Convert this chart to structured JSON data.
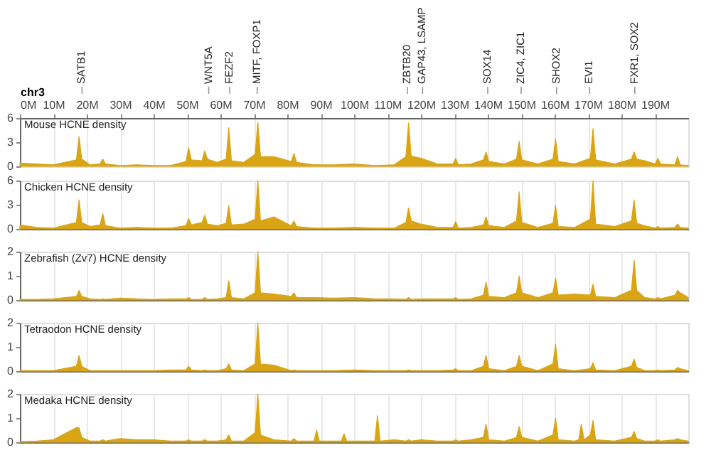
{
  "chart_data": [
    {
      "type": "area",
      "title": "Mouse HCNE density",
      "xlabel": "chr3",
      "color": "#d9a514",
      "grid": "x",
      "xlim": [
        0,
        200
      ],
      "xticks": [
        {
          "value": 0,
          "label": "0M"
        },
        {
          "value": 10,
          "label": "10M"
        },
        {
          "value": 20,
          "label": "20M"
        },
        {
          "value": 30,
          "label": "30M"
        },
        {
          "value": 40,
          "label": "40M"
        },
        {
          "value": 50,
          "label": "50M"
        },
        {
          "value": 60,
          "label": "60M"
        },
        {
          "value": 70,
          "label": "70M"
        },
        {
          "value": 80,
          "label": "80M"
        },
        {
          "value": 90,
          "label": "90M"
        },
        {
          "value": 100,
          "label": "100M"
        },
        {
          "value": 110,
          "label": "110M"
        },
        {
          "value": 120,
          "label": "120M"
        },
        {
          "value": 130,
          "label": "130M"
        },
        {
          "value": 140,
          "label": "140M"
        },
        {
          "value": 150,
          "label": "150M"
        },
        {
          "value": 160,
          "label": "160M"
        },
        {
          "value": 170,
          "label": "170M"
        },
        {
          "value": 180,
          "label": "180M"
        },
        {
          "value": 190,
          "label": "190M"
        }
      ],
      "ylim": [
        0,
        6
      ],
      "yticks": [
        0,
        3,
        6
      ],
      "ref_lines": [
        {
          "axis": "x",
          "value": 18.6,
          "label": "SATB1",
          "color": "#999999"
        },
        {
          "axis": "x",
          "value": 56.5,
          "label": "WNT5A",
          "color": "#999999"
        },
        {
          "axis": "x",
          "value": 62.8,
          "label": "FEZF2",
          "color": "#999999"
        },
        {
          "axis": "x",
          "value": 71,
          "label": "MITF, FOXP1",
          "color": "#999999"
        },
        {
          "axis": "x",
          "value": 116,
          "label": "ZBTB20",
          "color": "#999999"
        },
        {
          "axis": "x",
          "value": 120.5,
          "label": "GAP43, LSAMP",
          "color": "#999999"
        },
        {
          "axis": "x",
          "value": 140,
          "label": "SOX14",
          "color": "#999999"
        },
        {
          "axis": "x",
          "value": 150,
          "label": "ZIC4, ZIC1",
          "color": "#999999"
        },
        {
          "axis": "x",
          "value": 160.6,
          "label": "SHOX2",
          "color": "#999999"
        },
        {
          "axis": "x",
          "value": 170.5,
          "label": "EVI1",
          "color": "#999999"
        },
        {
          "axis": "x",
          "value": 184,
          "label": "FXR1, SOX2",
          "color": "#999999"
        }
      ],
      "x": [
        0,
        5,
        10,
        16.9,
        17.7,
        18.5,
        21,
        24,
        24.8,
        25.6,
        30,
        35,
        40,
        45,
        49.7,
        50.5,
        51.3,
        54.5,
        55.3,
        56.1,
        59,
        61.7,
        62.5,
        63.3,
        67,
        70.4,
        71.2,
        72,
        76,
        81.2,
        82,
        82.8,
        88,
        94,
        100,
        106,
        112,
        115.5,
        116.3,
        117.1,
        120,
        125,
        129.6,
        130.4,
        131.2,
        135,
        138.7,
        139.5,
        140.3,
        145,
        148.6,
        149.4,
        150.2,
        155,
        159.5,
        160.3,
        161.1,
        166,
        170.7,
        171.5,
        172.3,
        178,
        183,
        183.8,
        184.6,
        187,
        190.1,
        190.9,
        191.7,
        196,
        196.8,
        197.6,
        200
      ],
      "values": [
        0.4,
        0.3,
        0.2,
        0.8,
        3.7,
        0.9,
        0.2,
        0.3,
        0.9,
        0.3,
        0.1,
        0.2,
        0.1,
        0.1,
        0.6,
        2.3,
        0.8,
        0.7,
        1.9,
        0.9,
        0.5,
        0.9,
        4.8,
        0.7,
        0.5,
        1.5,
        5.5,
        1.2,
        1.2,
        0.6,
        1.6,
        0.5,
        0.2,
        0.2,
        0.3,
        0.1,
        0.2,
        1.2,
        5.4,
        1.3,
        1.0,
        0.3,
        0.3,
        1.0,
        0.2,
        0.3,
        0.8,
        1.8,
        0.6,
        0.3,
        0.9,
        3.1,
        0.8,
        0.3,
        0.9,
        3.4,
        0.6,
        0.3,
        1.0,
        4.7,
        0.8,
        0.3,
        0.9,
        1.8,
        0.9,
        0.7,
        0.3,
        1.0,
        0.3,
        0.2,
        1.2,
        0.2,
        0.1
      ]
    },
    {
      "type": "area",
      "title": "Chicken HCNE density",
      "color": "#d9a514",
      "grid": "x",
      "tick_labels": "y",
      "xlim": [
        0,
        200
      ],
      "xticks": [
        {
          "value": 0,
          "label": null
        },
        {
          "value": 10,
          "label": null
        },
        {
          "value": 20,
          "label": null
        },
        {
          "value": 30,
          "label": null
        },
        {
          "value": 40,
          "label": null
        },
        {
          "value": 50,
          "label": null
        },
        {
          "value": 60,
          "label": null
        },
        {
          "value": 70,
          "label": null
        },
        {
          "value": 80,
          "label": null
        },
        {
          "value": 90,
          "label": null
        },
        {
          "value": 100,
          "label": null
        },
        {
          "value": 110,
          "label": null
        },
        {
          "value": 120,
          "label": null
        },
        {
          "value": 130,
          "label": null
        },
        {
          "value": 140,
          "label": null
        },
        {
          "value": 150,
          "label": null
        },
        {
          "value": 160,
          "label": null
        },
        {
          "value": 170,
          "label": null
        },
        {
          "value": 180,
          "label": null
        },
        {
          "value": 190,
          "label": null
        }
      ],
      "ylim": [
        0,
        6
      ],
      "yticks": [
        0,
        3,
        6
      ],
      "x": [
        0,
        5,
        10,
        16.9,
        17.7,
        18.5,
        21,
        24,
        24.8,
        25.6,
        30,
        35,
        40,
        45,
        49.7,
        50.5,
        51.3,
        54.5,
        55.3,
        56.1,
        59,
        61.7,
        62.5,
        63.3,
        67,
        70.4,
        71.2,
        72,
        76,
        81.2,
        82,
        82.8,
        88,
        94,
        100,
        106,
        112,
        115.5,
        116.3,
        117.1,
        120,
        125,
        129.6,
        130.4,
        131.2,
        135,
        138.7,
        139.5,
        140.3,
        145,
        148.6,
        149.4,
        150.2,
        155,
        159.5,
        160.3,
        161.1,
        166,
        170.7,
        171.5,
        172.3,
        178,
        183,
        183.8,
        184.6,
        187,
        190.1,
        190.9,
        191.7,
        196,
        196.8,
        197.6,
        200
      ],
      "values": [
        0.5,
        0.2,
        0.1,
        0.8,
        3.6,
        0.8,
        0.3,
        0.5,
        1.9,
        0.4,
        0.1,
        0.2,
        0.1,
        0.1,
        0.4,
        1.3,
        0.5,
        0.8,
        1.7,
        0.6,
        0.4,
        0.7,
        2.9,
        0.5,
        0.6,
        1.2,
        6.0,
        1.0,
        1.5,
        0.4,
        1.0,
        0.3,
        0.1,
        0.1,
        0.2,
        0.1,
        0.1,
        0.8,
        2.6,
        1.0,
        0.6,
        0.2,
        0.2,
        0.9,
        0.1,
        0.2,
        0.5,
        1.5,
        0.4,
        0.2,
        1.0,
        4.6,
        0.8,
        0.2,
        0.7,
        2.9,
        0.3,
        0.2,
        1.2,
        6.0,
        0.6,
        0.3,
        1.0,
        3.6,
        0.7,
        0.4,
        0.1,
        0.3,
        0.1,
        0.2,
        0.6,
        0.2,
        0.1
      ]
    },
    {
      "type": "area",
      "title": "Zebrafish (Zv7) HCNE density",
      "color": "#d9a514",
      "grid": "x",
      "tick_labels": "y",
      "xlim": [
        0,
        200
      ],
      "xticks": [
        {
          "value": 0,
          "label": null
        },
        {
          "value": 10,
          "label": null
        },
        {
          "value": 20,
          "label": null
        },
        {
          "value": 30,
          "label": null
        },
        {
          "value": 40,
          "label": null
        },
        {
          "value": 50,
          "label": null
        },
        {
          "value": 60,
          "label": null
        },
        {
          "value": 70,
          "label": null
        },
        {
          "value": 80,
          "label": null
        },
        {
          "value": 90,
          "label": null
        },
        {
          "value": 100,
          "label": null
        },
        {
          "value": 110,
          "label": null
        },
        {
          "value": 120,
          "label": null
        },
        {
          "value": 130,
          "label": null
        },
        {
          "value": 140,
          "label": null
        },
        {
          "value": 150,
          "label": null
        },
        {
          "value": 160,
          "label": null
        },
        {
          "value": 170,
          "label": null
        },
        {
          "value": 180,
          "label": null
        },
        {
          "value": 190,
          "label": null
        }
      ],
      "ylim": [
        0,
        2
      ],
      "yticks": [
        0,
        1,
        2
      ],
      "x": [
        0,
        5,
        10,
        16.9,
        17.7,
        18.5,
        21,
        24,
        24.8,
        25.6,
        30,
        35,
        40,
        45,
        49.7,
        50.5,
        51.3,
        54.5,
        55.3,
        56.1,
        59,
        61.7,
        62.5,
        63.3,
        67,
        70.4,
        71.2,
        72,
        76,
        81.2,
        82,
        82.8,
        88,
        94,
        100,
        106,
        112,
        115.5,
        116.3,
        117.1,
        120,
        125,
        129.6,
        130.4,
        131.2,
        135,
        138.7,
        139.5,
        140.3,
        145,
        148.6,
        149.4,
        150.2,
        155,
        159.5,
        160.3,
        161.1,
        166,
        170.7,
        171.5,
        172.3,
        178,
        183,
        183.8,
        184.6,
        187,
        190.1,
        190.9,
        191.7,
        196,
        196.8,
        197.6,
        200
      ],
      "values": [
        0.03,
        0.03,
        0.05,
        0.15,
        0.4,
        0.15,
        0.05,
        0.03,
        0.05,
        0.03,
        0.08,
        0.05,
        0.03,
        0.05,
        0.05,
        0.1,
        0.03,
        0.03,
        0.1,
        0.03,
        0.05,
        0.1,
        0.8,
        0.1,
        0.05,
        0.3,
        2.0,
        0.3,
        0.25,
        0.15,
        0.3,
        0.1,
        0.1,
        0.08,
        0.1,
        0.05,
        0.05,
        0.03,
        0.1,
        0.03,
        0.05,
        0.05,
        0.05,
        0.1,
        0.03,
        0.05,
        0.2,
        0.75,
        0.15,
        0.1,
        0.3,
        1.0,
        0.3,
        0.1,
        0.3,
        0.9,
        0.2,
        0.25,
        0.2,
        0.65,
        0.15,
        0.1,
        0.4,
        1.65,
        0.4,
        0.1,
        0.05,
        0.1,
        0.05,
        0.2,
        0.4,
        0.3,
        0.1
      ]
    },
    {
      "type": "area",
      "title": "Tetraodon HCNE density",
      "color": "#d9a514",
      "grid": "x",
      "tick_labels": "y",
      "xlim": [
        0,
        200
      ],
      "xticks": [
        {
          "value": 0,
          "label": null
        },
        {
          "value": 10,
          "label": null
        },
        {
          "value": 20,
          "label": null
        },
        {
          "value": 30,
          "label": null
        },
        {
          "value": 40,
          "label": null
        },
        {
          "value": 50,
          "label": null
        },
        {
          "value": 60,
          "label": null
        },
        {
          "value": 70,
          "label": null
        },
        {
          "value": 80,
          "label": null
        },
        {
          "value": 90,
          "label": null
        },
        {
          "value": 100,
          "label": null
        },
        {
          "value": 110,
          "label": null
        },
        {
          "value": 120,
          "label": null
        },
        {
          "value": 130,
          "label": null
        },
        {
          "value": 140,
          "label": null
        },
        {
          "value": 150,
          "label": null
        },
        {
          "value": 160,
          "label": null
        },
        {
          "value": 170,
          "label": null
        },
        {
          "value": 180,
          "label": null
        },
        {
          "value": 190,
          "label": null
        }
      ],
      "ylim": [
        0,
        2
      ],
      "yticks": [
        0,
        1,
        2
      ],
      "x": [
        0,
        5,
        10,
        16.9,
        17.7,
        18.5,
        21,
        24,
        24.8,
        25.6,
        30,
        35,
        40,
        45,
        49.7,
        50.5,
        51.3,
        54.5,
        55.3,
        56.1,
        59,
        61.7,
        62.5,
        63.3,
        67,
        70.4,
        71.2,
        72,
        76,
        81.2,
        82,
        82.8,
        88,
        94,
        100,
        106,
        112,
        115.5,
        116.3,
        117.1,
        120,
        125,
        129.6,
        130.4,
        131.2,
        135,
        138.7,
        139.5,
        140.3,
        145,
        148.6,
        149.4,
        150.2,
        155,
        159.5,
        160.3,
        161.1,
        166,
        170.7,
        171.5,
        172.3,
        178,
        183,
        183.8,
        184.6,
        187,
        190.1,
        190.9,
        191.7,
        196,
        196.8,
        197.6,
        200
      ],
      "values": [
        0.02,
        0.02,
        0.02,
        0.2,
        0.65,
        0.2,
        0.02,
        0.02,
        0.02,
        0.02,
        0.02,
        0.02,
        0.02,
        0.05,
        0.05,
        0.2,
        0.05,
        0.02,
        0.05,
        0.02,
        0.02,
        0.1,
        0.3,
        0.05,
        0.02,
        0.3,
        2.0,
        0.3,
        0.25,
        0.02,
        0.05,
        0.02,
        0.02,
        0.02,
        0.05,
        0.02,
        0.02,
        0.02,
        0.05,
        0.02,
        0.02,
        0.02,
        0.05,
        0.1,
        0.02,
        0.02,
        0.2,
        0.65,
        0.1,
        0.02,
        0.2,
        0.65,
        0.2,
        0.02,
        0.3,
        1.1,
        0.1,
        0.02,
        0.1,
        0.35,
        0.05,
        0.02,
        0.2,
        0.5,
        0.15,
        0.02,
        0.02,
        0.05,
        0.02,
        0.05,
        0.15,
        0.1,
        0.02
      ]
    },
    {
      "type": "area",
      "title": "Medaka HCNE density",
      "color": "#d9a514",
      "grid": "x",
      "tick_labels": "y",
      "xlim": [
        0,
        200
      ],
      "xticks": [
        {
          "value": 0,
          "label": null
        },
        {
          "value": 10,
          "label": null
        },
        {
          "value": 20,
          "label": null
        },
        {
          "value": 30,
          "label": null
        },
        {
          "value": 40,
          "label": null
        },
        {
          "value": 50,
          "label": null
        },
        {
          "value": 60,
          "label": null
        },
        {
          "value": 70,
          "label": null
        },
        {
          "value": 80,
          "label": null
        },
        {
          "value": 90,
          "label": null
        },
        {
          "value": 100,
          "label": null
        },
        {
          "value": 110,
          "label": null
        },
        {
          "value": 120,
          "label": null
        },
        {
          "value": 130,
          "label": null
        },
        {
          "value": 140,
          "label": null
        },
        {
          "value": 150,
          "label": null
        },
        {
          "value": 160,
          "label": null
        },
        {
          "value": 170,
          "label": null
        },
        {
          "value": 180,
          "label": null
        },
        {
          "value": 190,
          "label": null
        }
      ],
      "ylim": [
        0,
        2
      ],
      "yticks": [
        0,
        1,
        2
      ],
      "x": [
        0,
        5,
        10,
        16.9,
        17.7,
        18.5,
        21,
        24,
        24.8,
        25.6,
        30,
        35,
        40,
        45,
        49.7,
        50.5,
        51.3,
        54.5,
        55.3,
        56.1,
        59,
        61.7,
        62.5,
        63.3,
        67,
        70.4,
        71.2,
        72,
        76,
        81.2,
        82,
        82.8,
        88,
        88.8,
        89.6,
        96.2,
        97,
        97.8,
        106.2,
        107,
        107.8,
        112,
        115.5,
        116.3,
        117.1,
        120,
        125,
        129.6,
        130.4,
        131.2,
        135,
        138.7,
        139.5,
        140.3,
        145,
        148.6,
        149.4,
        150.2,
        155,
        159.5,
        160.3,
        161.1,
        166,
        167.2,
        168,
        168.8,
        170.7,
        171.5,
        172.3,
        178,
        183,
        183.8,
        184.6,
        187,
        190.1,
        190.9,
        191.7,
        196,
        196.8,
        197.6,
        200
      ],
      "values": [
        0.02,
        0.05,
        0.1,
        0.6,
        0.6,
        0.2,
        0.05,
        0.05,
        0.1,
        0.05,
        0.15,
        0.1,
        0.1,
        0.05,
        0.05,
        0.1,
        0.05,
        0.05,
        0.1,
        0.05,
        0.05,
        0.1,
        0.3,
        0.05,
        0.05,
        0.4,
        2.0,
        0.3,
        0.1,
        0.05,
        0.15,
        0.05,
        0.05,
        0.5,
        0.05,
        0.05,
        0.35,
        0.05,
        0.05,
        1.1,
        0.05,
        0.1,
        0.05,
        0.1,
        0.05,
        0.1,
        0.05,
        0.05,
        0.1,
        0.05,
        0.1,
        0.2,
        0.75,
        0.1,
        0.05,
        0.2,
        0.65,
        0.2,
        0.05,
        0.3,
        1.0,
        0.1,
        0.05,
        0.1,
        0.75,
        0.1,
        0.3,
        0.9,
        0.1,
        0.05,
        0.2,
        0.45,
        0.15,
        0.05,
        0.05,
        0.1,
        0.05,
        0.1,
        0.15,
        0.1,
        0.05
      ]
    }
  ]
}
